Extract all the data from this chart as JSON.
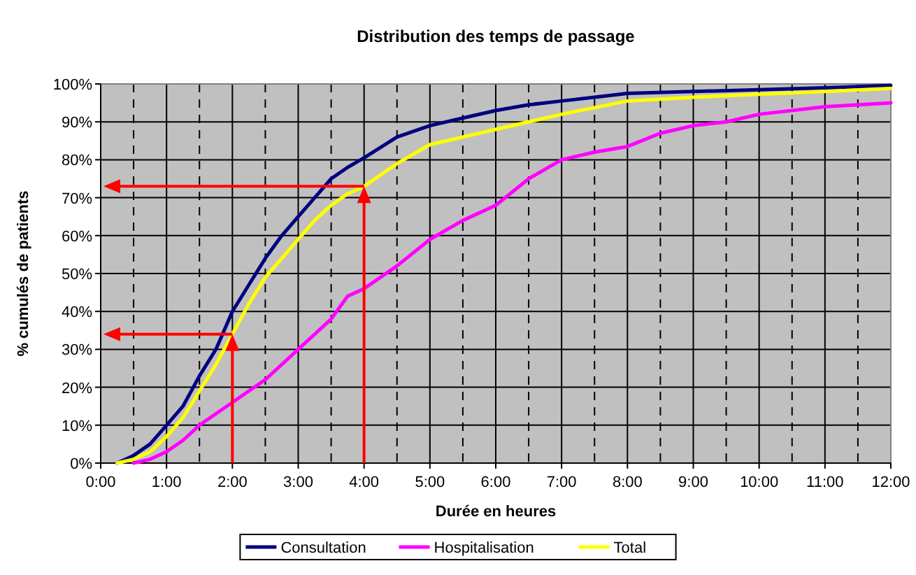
{
  "chart_data": {
    "type": "line",
    "title": "Distribution des temps de passage",
    "xlabel": "Durée en heures",
    "ylabel": "% cumulés de patients",
    "xlim": [
      0,
      12
    ],
    "xticks": [
      {
        "value": 0,
        "label": "0:00"
      },
      {
        "value": 1,
        "label": "1:00"
      },
      {
        "value": 2,
        "label": "2:00"
      },
      {
        "value": 3,
        "label": "3:00"
      },
      {
        "value": 4,
        "label": "4:00"
      },
      {
        "value": 5,
        "label": "5:00"
      },
      {
        "value": 6,
        "label": "6:00"
      },
      {
        "value": 7,
        "label": "7:00"
      },
      {
        "value": 8,
        "label": "8:00"
      },
      {
        "value": 9,
        "label": "9:00"
      },
      {
        "value": 10,
        "label": "10:00"
      },
      {
        "value": 11,
        "label": "11:00"
      },
      {
        "value": 12,
        "label": "12:00"
      }
    ],
    "ylim": [
      0,
      100
    ],
    "yticks": [
      {
        "value": 0,
        "label": "0%"
      },
      {
        "value": 10,
        "label": "10%"
      },
      {
        "value": 20,
        "label": "20%"
      },
      {
        "value": 30,
        "label": "30%"
      },
      {
        "value": 40,
        "label": "40%"
      },
      {
        "value": 50,
        "label": "50%"
      },
      {
        "value": 60,
        "label": "60%"
      },
      {
        "value": 70,
        "label": "70%"
      },
      {
        "value": 80,
        "label": "80%"
      },
      {
        "value": 90,
        "label": "90%"
      },
      {
        "value": 100,
        "label": "100%"
      }
    ],
    "grid": true,
    "legend": "bottom",
    "marker": "none",
    "line_style": "solid",
    "series": [
      {
        "name": "Consultation",
        "color": "#000080",
        "x": [
          0.25,
          0.5,
          0.75,
          1,
          1.25,
          1.5,
          1.75,
          2,
          2.25,
          2.5,
          2.75,
          3,
          3.25,
          3.5,
          3.75,
          4,
          4.5,
          5,
          5.5,
          6,
          6.5,
          7,
          7.5,
          8,
          9,
          10,
          11,
          12
        ],
        "values": [
          0,
          2,
          5,
          10,
          15,
          23,
          30,
          40,
          47,
          54,
          60,
          65,
          70,
          75,
          78,
          80.5,
          86,
          89,
          91,
          93,
          94.5,
          95.5,
          96.5,
          97.5,
          98,
          98.5,
          99,
          99.6
        ]
      },
      {
        "name": "Hospitalisation",
        "color": "#ff00ff",
        "x": [
          0.5,
          0.75,
          1,
          1.25,
          1.5,
          1.75,
          2,
          2.5,
          3,
          3.5,
          3.75,
          4,
          4.5,
          5,
          5.5,
          6,
          6.5,
          7,
          7.5,
          8,
          8.5,
          9,
          9.5,
          10,
          11,
          12
        ],
        "values": [
          0,
          1,
          3,
          6,
          10,
          13,
          16,
          22,
          30,
          38,
          44,
          46,
          52,
          59,
          64,
          68,
          75,
          80,
          82,
          83.5,
          87,
          89,
          90,
          92,
          94,
          95
        ]
      },
      {
        "name": "Total",
        "color": "#ffff00",
        "x": [
          0.25,
          0.5,
          0.75,
          1,
          1.25,
          1.5,
          1.75,
          2,
          2.25,
          2.5,
          2.75,
          3,
          3.25,
          3.5,
          3.75,
          4,
          4.5,
          5,
          5.5,
          6,
          7,
          8,
          9,
          10,
          11,
          12
        ],
        "values": [
          0,
          1,
          3,
          7,
          12,
          19,
          26,
          34,
          42,
          49,
          54,
          59,
          64,
          68,
          71,
          73,
          79,
          84,
          86,
          88,
          92,
          95.5,
          96.5,
          97.3,
          98,
          98.8
        ]
      }
    ]
  }
}
